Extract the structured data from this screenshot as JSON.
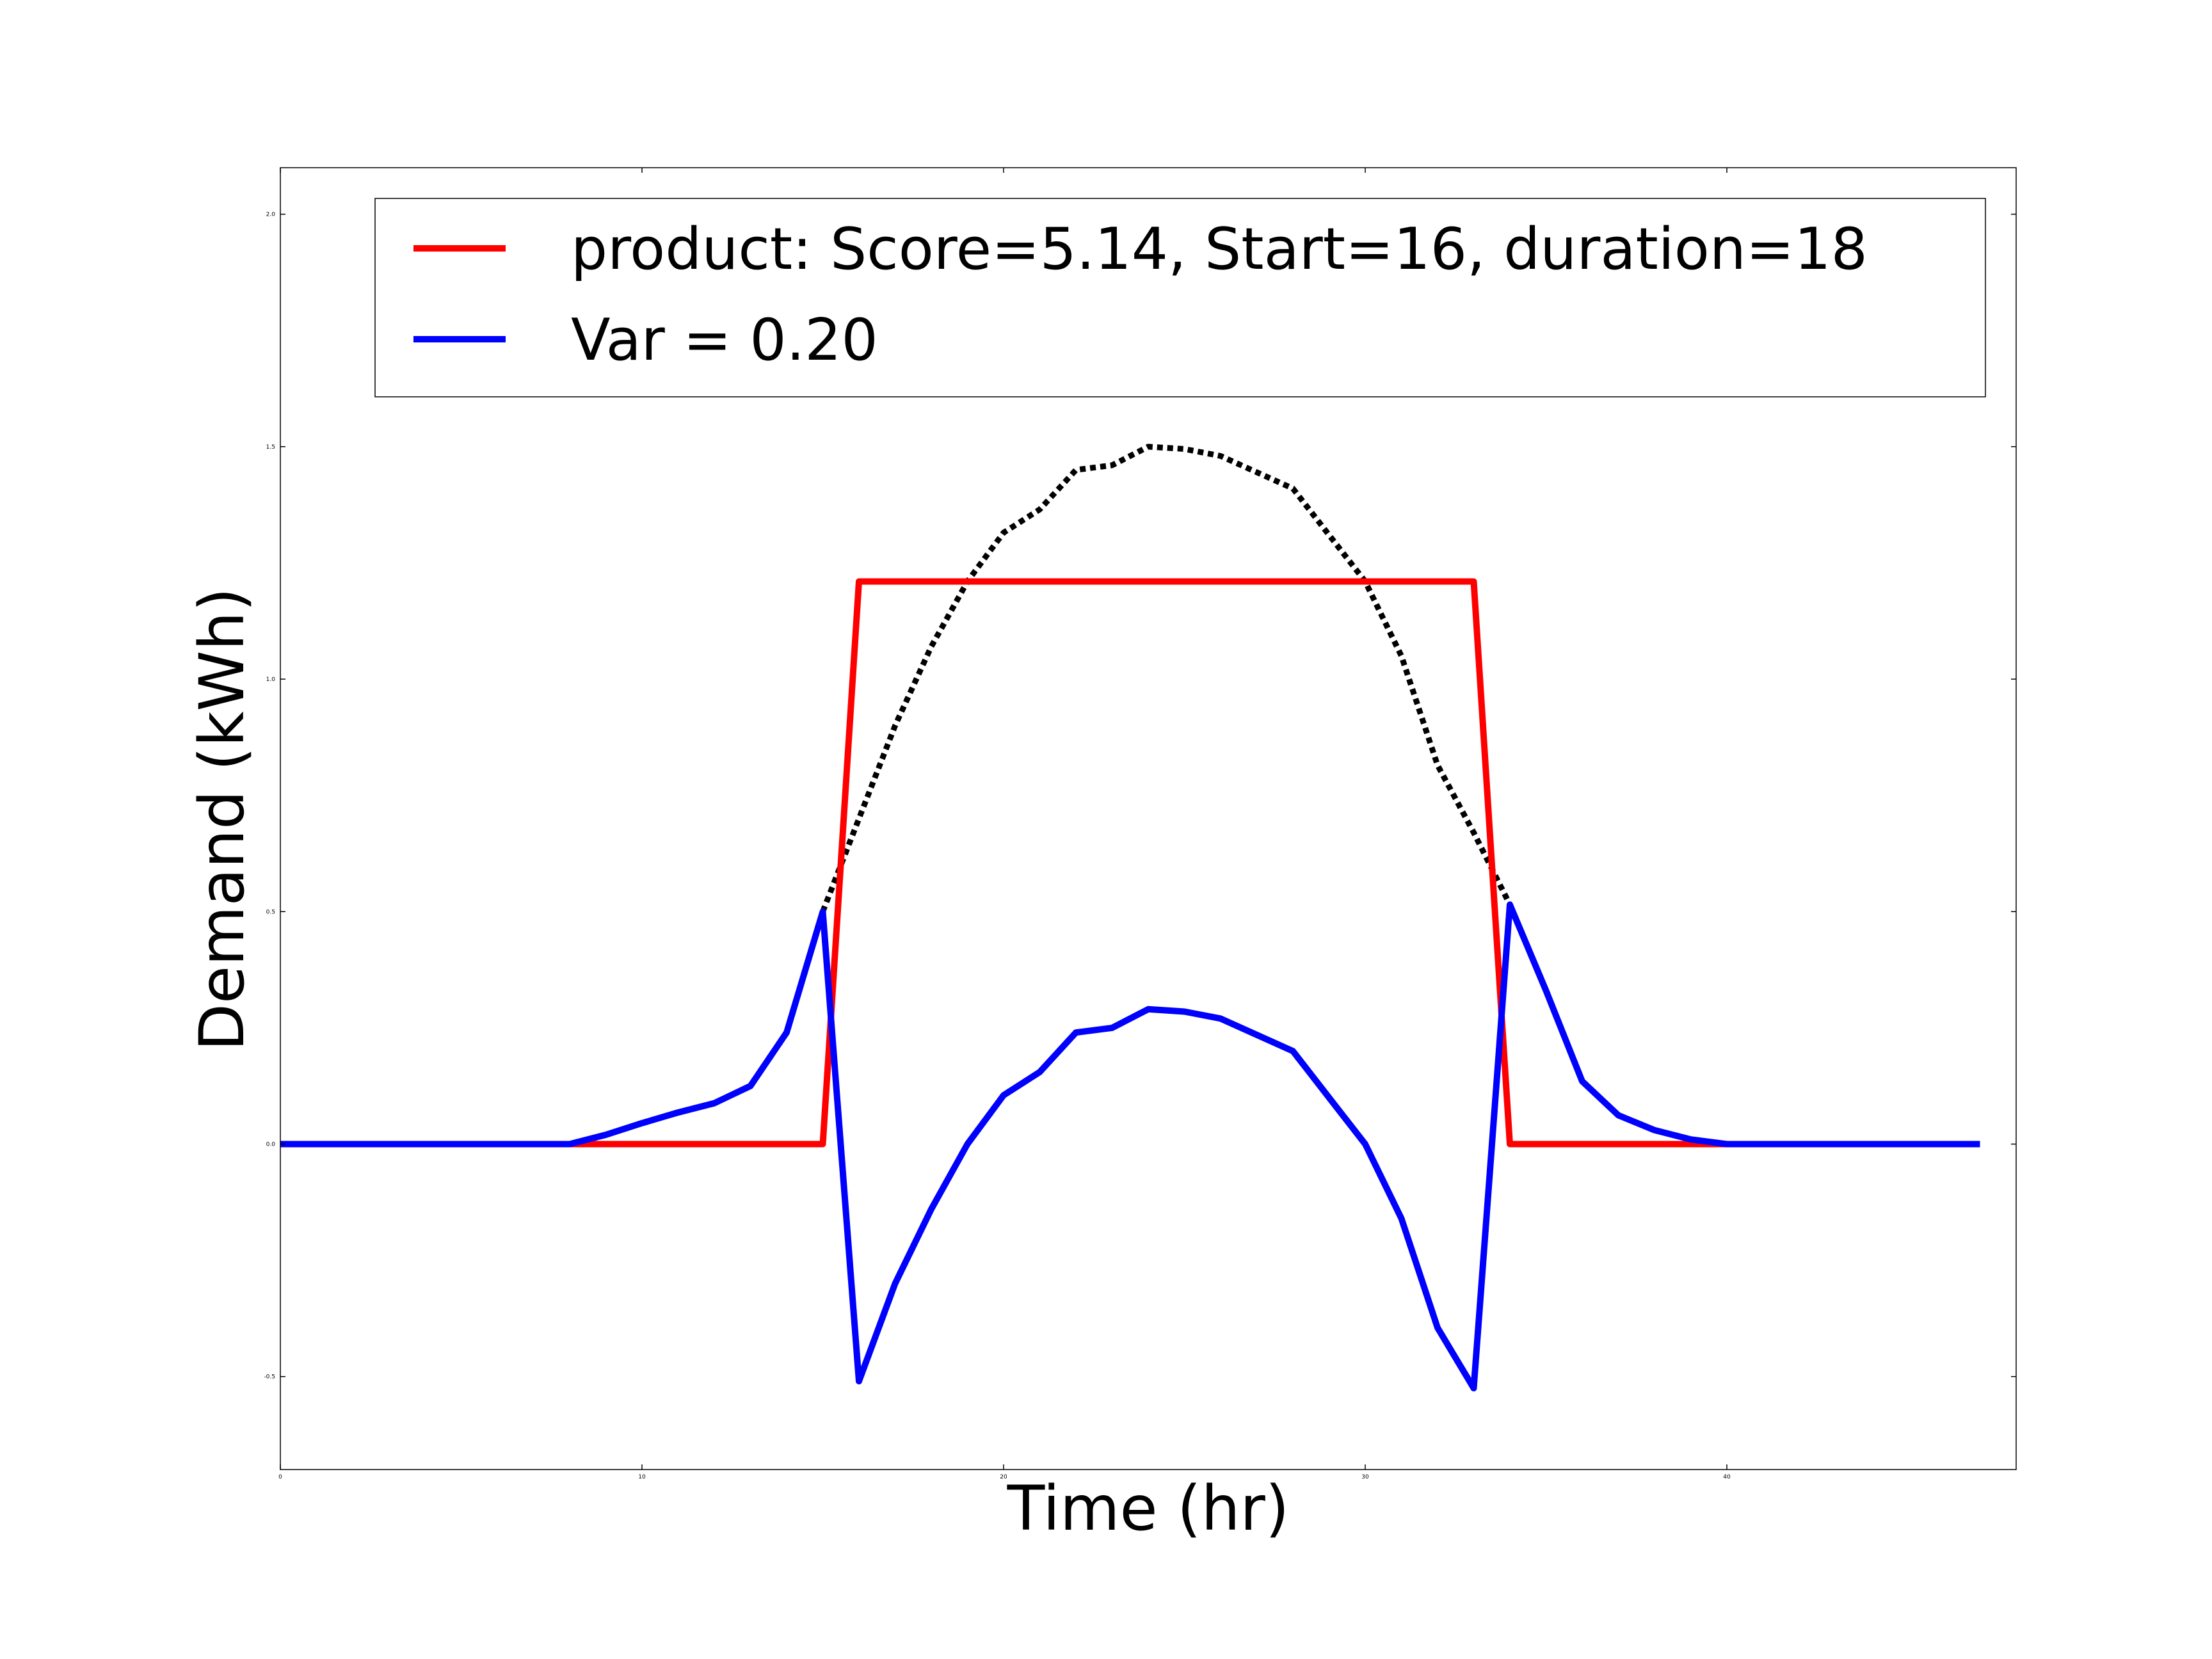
{
  "chart_data": {
    "type": "line",
    "title": "",
    "xlabel": "Time (hr)",
    "ylabel": "Demand (kWh)",
    "xlim": [
      0,
      48
    ],
    "ylim": [
      -0.7,
      2.1
    ],
    "x_ticks": [
      0,
      10,
      20,
      30,
      40
    ],
    "y_ticks": [
      -0.5,
      0.0,
      0.5,
      1.0,
      1.5,
      2.0
    ],
    "grid": false,
    "legend_position": "top-right",
    "x": [
      0,
      1,
      2,
      3,
      4,
      5,
      6,
      7,
      8,
      9,
      10,
      11,
      12,
      13,
      14,
      15,
      16,
      17,
      18,
      19,
      20,
      21,
      22,
      23,
      24,
      25,
      26,
      27,
      28,
      29,
      30,
      31,
      32,
      33,
      34,
      35,
      36,
      37,
      38,
      39,
      40,
      41,
      42,
      43,
      44,
      45,
      46,
      47
    ],
    "series": [
      {
        "name": "product: Score=5.14, Start=16, duration=18",
        "color": "#ff0000",
        "style": "solid",
        "values": [
          0,
          0,
          0,
          0,
          0,
          0,
          0,
          0,
          0,
          0,
          0,
          0,
          0,
          0,
          0,
          0,
          1.21,
          1.21,
          1.21,
          1.21,
          1.21,
          1.21,
          1.21,
          1.21,
          1.21,
          1.21,
          1.21,
          1.21,
          1.21,
          1.21,
          1.21,
          1.21,
          1.21,
          1.21,
          0,
          0,
          0,
          0,
          0,
          0,
          0,
          0,
          0,
          0,
          0,
          0,
          0,
          0
        ]
      },
      {
        "name": "Var = 0.20",
        "color": "#0000ff",
        "style": "solid",
        "values": [
          0,
          0,
          0,
          0,
          0,
          0,
          0,
          0,
          0,
          0.02,
          0.045,
          0.068,
          0.088,
          0.125,
          0.24,
          0.5,
          -0.51,
          -0.3,
          -0.14,
          0.0,
          0.105,
          0.155,
          0.24,
          0.25,
          0.29,
          0.285,
          0.27,
          0.235,
          0.2,
          0.1,
          0.0,
          -0.16,
          -0.395,
          -0.525,
          0.515,
          0.33,
          0.135,
          0.062,
          0.03,
          0.01,
          0,
          0,
          0,
          0,
          0,
          0,
          0,
          0
        ]
      },
      {
        "color": "#000000",
        "style": "dotted",
        "x": [
          15,
          16,
          17,
          18,
          19,
          20,
          21,
          22,
          23,
          24,
          25,
          26,
          27,
          28,
          29,
          30,
          31,
          32,
          33,
          34
        ],
        "values": [
          0.5,
          0.7,
          0.9,
          1.07,
          1.21,
          1.315,
          1.365,
          1.45,
          1.46,
          1.5,
          1.495,
          1.48,
          1.445,
          1.41,
          1.31,
          1.21,
          1.05,
          0.815,
          0.67,
          0.515
        ]
      }
    ]
  }
}
